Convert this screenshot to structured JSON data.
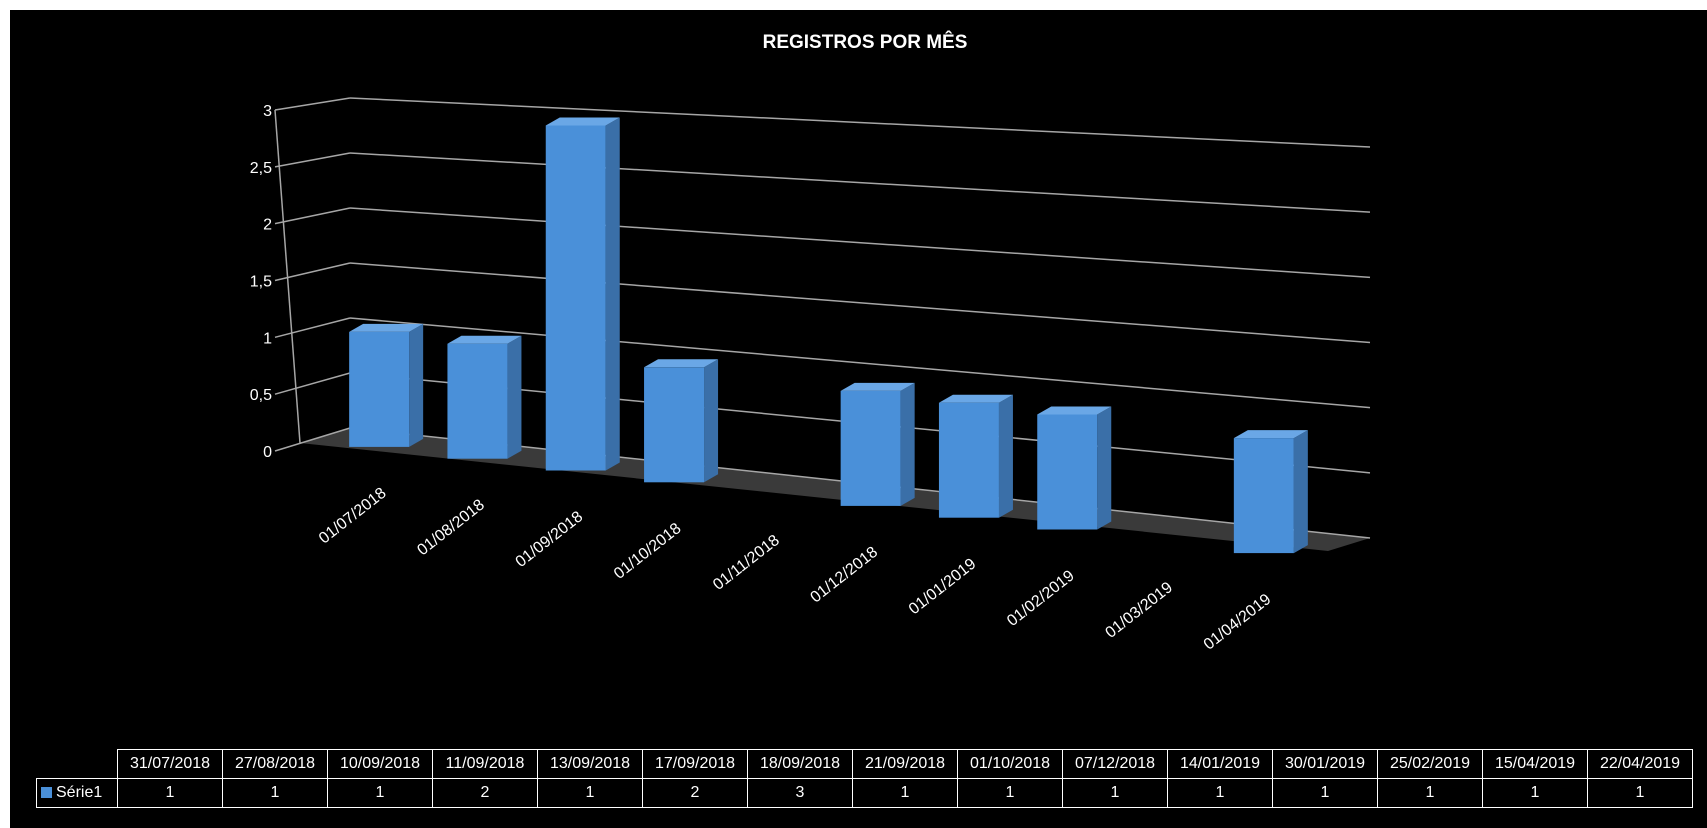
{
  "chart_data": {
    "type": "bar",
    "title": "REGISTROS POR MÊS",
    "categories": [
      "01/07/2018",
      "01/08/2018",
      "01/09/2018",
      "01/10/2018",
      "01/11/2018",
      "01/12/2018",
      "01/01/2019",
      "01/02/2019",
      "01/03/2019",
      "01/04/2019"
    ],
    "series": [
      {
        "values": [
          1,
          1,
          3,
          1,
          0,
          1,
          1,
          1,
          0,
          1
        ]
      }
    ],
    "y_ticks": [
      "0",
      "0,5",
      "1",
      "1,5",
      "2",
      "2,5",
      "3"
    ],
    "ylim": [
      0,
      3
    ],
    "grid": true,
    "style": "3d-column",
    "colors": {
      "bar": "#4a90d9",
      "bar_side": "#3a6fa8",
      "bar_top": "#6aa7e6",
      "background": "#000000",
      "text": "#ffffff",
      "grid": "#a6a6a6"
    }
  },
  "data_table": {
    "dates": [
      "31/07/2018",
      "27/08/2018",
      "10/09/2018",
      "11/09/2018",
      "13/09/2018",
      "17/09/2018",
      "18/09/2018",
      "21/09/2018",
      "01/10/2018",
      "07/12/2018",
      "14/01/2019",
      "30/01/2019",
      "25/02/2019",
      "15/04/2019",
      "22/04/2019"
    ],
    "series_name": "Série1",
    "values": [
      "1",
      "1",
      "1",
      "2",
      "1",
      "2",
      "3",
      "1",
      "1",
      "1",
      "1",
      "1",
      "1",
      "1",
      "1"
    ]
  }
}
